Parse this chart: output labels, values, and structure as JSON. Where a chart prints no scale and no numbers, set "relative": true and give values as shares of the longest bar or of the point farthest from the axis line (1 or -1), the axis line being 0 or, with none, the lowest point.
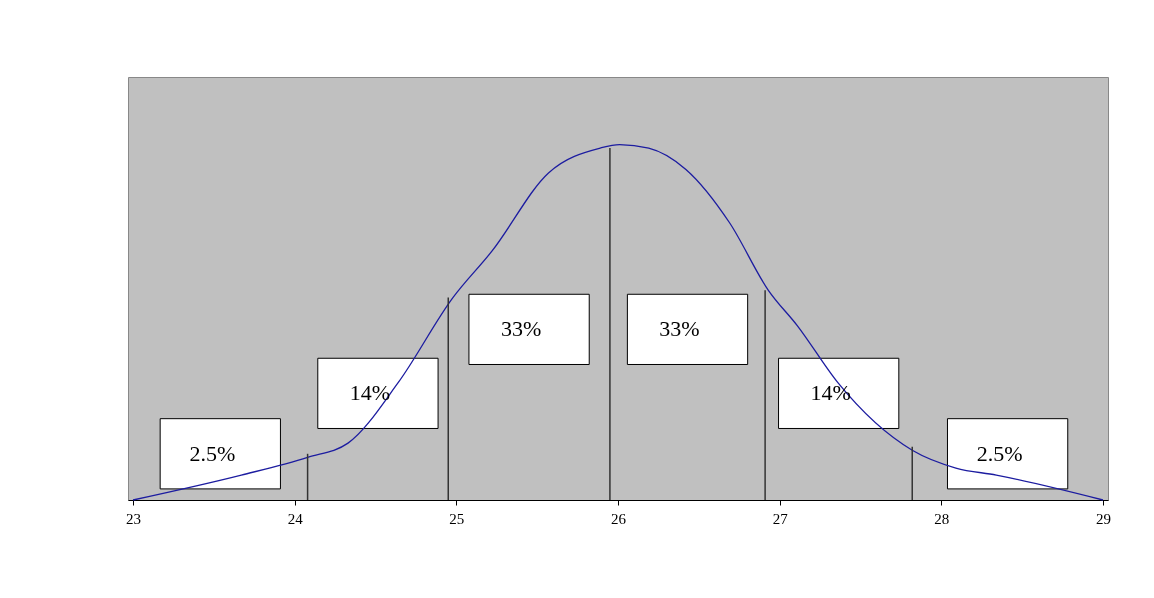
{
  "chart_data": {
    "type": "line",
    "relative": true,
    "xlim": [
      23,
      29
    ],
    "xticks": [
      23,
      24,
      25,
      26,
      27,
      28,
      29
    ],
    "grid": false,
    "series": [
      {
        "color": "#1c1ca0",
        "x": [
          23,
          23.67,
          24.08,
          24.33,
          24.64,
          24.98,
          25.22,
          25.57,
          25.89,
          26.01,
          26.19,
          26.42,
          26.69,
          26.93,
          27.11,
          27.36,
          27.82,
          28.09,
          28.34,
          29
        ],
        "values": [
          0,
          0.07,
          0.12,
          0.16,
          0.33,
          0.57,
          0.7,
          0.92,
          0.99,
          1,
          0.99,
          0.93,
          0.78,
          0.59,
          0.49,
          0.33,
          0.14,
          0.09,
          0.07,
          0
        ]
      },
      {
        "type": "bar",
        "color": "#333333",
        "x": [
          24.08,
          24.95,
          25.95,
          26.91,
          27.82
        ],
        "values": [
          0.13,
          0.57,
          0.99,
          0.59,
          0.15
        ]
      }
    ],
    "annotations": [
      "2.5%",
      "14%",
      "33%",
      "33%",
      "14%",
      "2.5%"
    ]
  }
}
